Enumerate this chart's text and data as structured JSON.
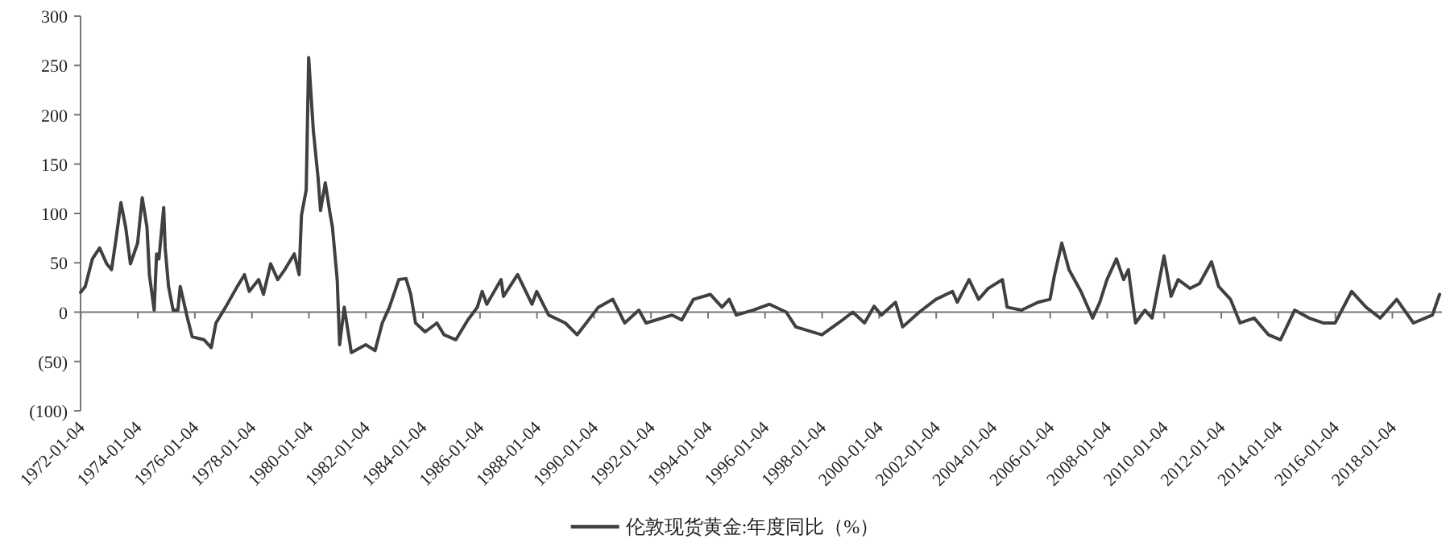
{
  "chart_data": {
    "type": "line",
    "legend": "bottom",
    "marker": "none",
    "line_style": "solid",
    "ylim": [
      -100,
      300
    ],
    "yticks": [
      {
        "value": -100,
        "label": "(100)"
      },
      {
        "value": -50,
        "label": "(50)"
      },
      0,
      50,
      100,
      150,
      200,
      250,
      300
    ],
    "xlim": [
      "1972-01-01",
      "2019-10-01"
    ],
    "xticks": [
      "1972-01-04",
      "1974-01-04",
      "1976-01-04",
      "1978-01-04",
      "1980-01-04",
      "1982-01-04",
      "1984-01-04",
      "1986-01-04",
      "1988-01-04",
      "1990-01-04",
      "1992-01-04",
      "1994-01-04",
      "1996-01-04",
      "1998-01-04",
      "2000-01-04",
      "2002-01-04",
      "2004-01-04",
      "2006-01-04",
      "2008-01-04",
      "2010-01-04",
      "2012-01-04",
      "2014-01-04",
      "2016-01-04",
      "2018-01-04"
    ],
    "series": [
      {
        "name": "伦敦现货黄金:年度同比（%）",
        "color": "#404040",
        "x": [
          "1972-01",
          "1972-03",
          "1972-06",
          "1972-09",
          "1972-12",
          "1973-02",
          "1973-04",
          "1973-06",
          "1973-08",
          "1973-10",
          "1974-01",
          "1974-03",
          "1974-05",
          "1974-06",
          "1974-08",
          "1974-09",
          "1974-10",
          "1974-12",
          "1974-12-20",
          "1975-02",
          "1975-04",
          "1975-06",
          "1975-07",
          "1975-10",
          "1975-12",
          "1976-05",
          "1976-08",
          "1976-10",
          "1977-02",
          "1977-07",
          "1977-10",
          "1977-12",
          "1978-04",
          "1978-06",
          "1978-09",
          "1978-12",
          "1979-03",
          "1979-07",
          "1979-09",
          "1979-10",
          "1979-12",
          "1980-01",
          "1980-03",
          "1980-05",
          "1980-06",
          "1980-08",
          "1980-10",
          "1980-11",
          "1981-01",
          "1981-02",
          "1981-04",
          "1981-07",
          "1982-01",
          "1982-05",
          "1982-08",
          "1982-11",
          "1983-03",
          "1983-06",
          "1983-08",
          "1983-10",
          "1984-02",
          "1984-07",
          "1984-10",
          "1985-03",
          "1985-08",
          "1985-12",
          "1986-02",
          "1986-04",
          "1986-10",
          "1986-11",
          "1987-05",
          "1987-11",
          "1988-01",
          "1988-06",
          "1989-01",
          "1989-06",
          "1990-03",
          "1990-09",
          "1991-02",
          "1991-08",
          "1991-11",
          "1992-10",
          "1993-02",
          "1993-07",
          "1994-02",
          "1994-07",
          "1994-10",
          "1995-01",
          "1995-08",
          "1996-03",
          "1996-10",
          "1997-02",
          "1998-01",
          "1998-08",
          "1999-02",
          "1999-07",
          "1999-11",
          "2000-02",
          "2000-08",
          "2000-11",
          "2001-06",
          "2002-01",
          "2002-08",
          "2002-10",
          "2003-03",
          "2003-07",
          "2003-11",
          "2004-05",
          "2004-07",
          "2005-01",
          "2005-08",
          "2006-01",
          "2006-03",
          "2006-06",
          "2006-09",
          "2007-02",
          "2007-07",
          "2007-10",
          "2008-01",
          "2008-05",
          "2008-08",
          "2008-10",
          "2009-01",
          "2009-05",
          "2009-08",
          "2010-01",
          "2010-04",
          "2010-07",
          "2010-12",
          "2011-04",
          "2011-09",
          "2011-12",
          "2012-05",
          "2012-09",
          "2013-03",
          "2013-09",
          "2014-02",
          "2014-08",
          "2015-02",
          "2015-08",
          "2016-01",
          "2016-08",
          "2017-02",
          "2017-08",
          "2018-03",
          "2018-10",
          "2019-06",
          "2019-09"
        ],
        "values": [
          20,
          26,
          54,
          65,
          49,
          43,
          75,
          111,
          86,
          49,
          70,
          116,
          86,
          38,
          2,
          59,
          54,
          106,
          65,
          26,
          2,
          2,
          26,
          -6,
          -25,
          -28,
          -36,
          -11,
          5,
          26,
          38,
          21,
          33,
          18,
          49,
          33,
          43,
          59,
          38,
          98,
          124,
          258,
          184,
          136,
          103,
          131,
          100,
          86,
          33,
          -33,
          5,
          -41,
          -33,
          -39,
          -11,
          5,
          33,
          34,
          18,
          -11,
          -20,
          -11,
          -23,
          -28,
          -8,
          5,
          21,
          8,
          33,
          16,
          38,
          8,
          21,
          -3,
          -11,
          -23,
          5,
          13,
          -11,
          2,
          -11,
          -3,
          -8,
          13,
          18,
          5,
          13,
          -3,
          2,
          8,
          0,
          -15,
          -23,
          -11,
          0,
          -11,
          6,
          -3,
          10,
          -15,
          0,
          13,
          21,
          10,
          33,
          13,
          24,
          33,
          5,
          2,
          10,
          13,
          38,
          70,
          43,
          21,
          -6,
          10,
          33,
          54,
          33,
          43,
          -11,
          2,
          -6,
          57,
          16,
          33,
          24,
          29,
          51,
          26,
          13,
          -11,
          -6,
          -23,
          -28,
          2,
          -6,
          -11,
          -11,
          21,
          5,
          -6,
          13,
          -11,
          -3,
          18
        ]
      }
    ]
  }
}
